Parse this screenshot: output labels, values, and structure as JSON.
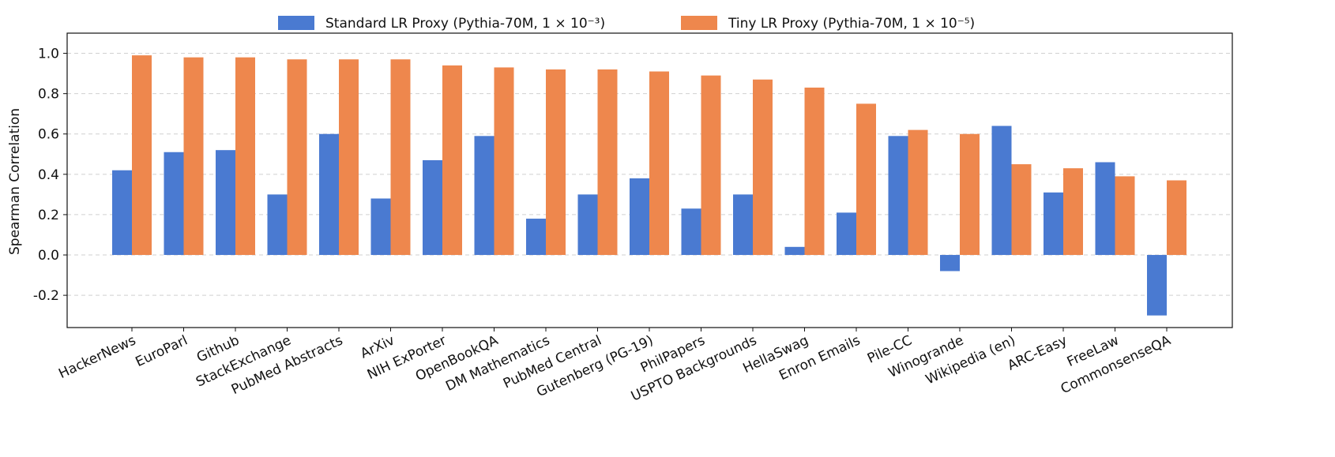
{
  "chart_data": {
    "type": "bar",
    "title": "",
    "xlabel": "",
    "ylabel": "Spearman Correlation",
    "ylim": [
      -0.36,
      1.1
    ],
    "yticks": [
      -0.2,
      0.0,
      0.2,
      0.4,
      0.6,
      0.8,
      1.0
    ],
    "ytick_labels": [
      "-0.2",
      "0.0",
      "0.2",
      "0.4",
      "0.6",
      "0.8",
      "1.0"
    ],
    "grid": "y dashed",
    "legend_position": "top-center",
    "categories": [
      "HackerNews",
      "EuroParl",
      "Github",
      "StackExchange",
      "PubMed Abstracts",
      "ArXiv",
      "NIH ExPorter",
      "OpenBookQA",
      "DM Mathematics",
      "PubMed Central",
      "Gutenberg (PG-19)",
      "PhilPapers",
      "USPTO Backgrounds",
      "HellaSwag",
      "Enron Emails",
      "Pile-CC",
      "Winogrande",
      "Wikipedia (en)",
      "ARC-Easy",
      "FreeLaw",
      "CommonsenseQA"
    ],
    "series": [
      {
        "name": "Standard LR Proxy (Pythia-70M, 1 × 10⁻³)",
        "color": "#4a7ad1",
        "values": [
          0.42,
          0.51,
          0.52,
          0.3,
          0.6,
          0.28,
          0.47,
          0.59,
          0.18,
          0.3,
          0.38,
          0.23,
          0.3,
          0.04,
          0.21,
          0.59,
          -0.08,
          0.64,
          0.31,
          0.46,
          -0.3
        ]
      },
      {
        "name": "Tiny LR Proxy (Pythia-70M, 1 × 10⁻⁵)",
        "color": "#ee874d",
        "values": [
          0.99,
          0.98,
          0.98,
          0.97,
          0.97,
          0.97,
          0.94,
          0.93,
          0.92,
          0.92,
          0.91,
          0.89,
          0.87,
          0.83,
          0.75,
          0.62,
          0.6,
          0.45,
          0.43,
          0.39,
          0.37
        ]
      }
    ]
  }
}
